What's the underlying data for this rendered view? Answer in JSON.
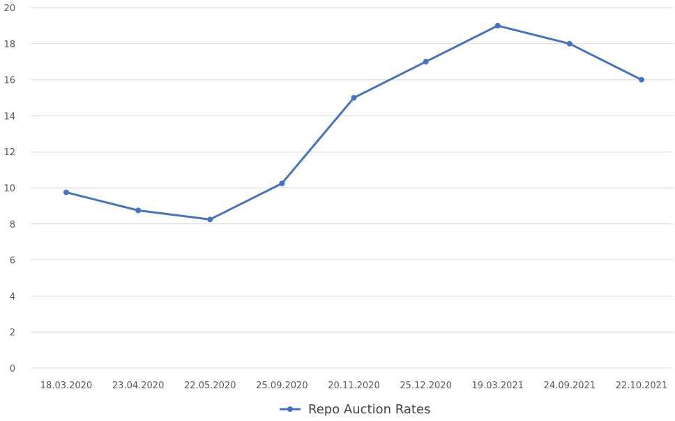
{
  "chart_data": {
    "type": "line",
    "title": "",
    "xlabel": "",
    "ylabel": "",
    "categories": [
      "18.03.2020",
      "23.04.2020",
      "22.05.2020",
      "25.09.2020",
      "20.11.2020",
      "25.12.2020",
      "19.03.2021",
      "24.09.2021",
      "22.10.2021"
    ],
    "series": [
      {
        "name": "Repo Auction Rates",
        "color": "#4472c4",
        "values": [
          9.75,
          8.75,
          8.25,
          10.25,
          15,
          17,
          19,
          18,
          16
        ]
      }
    ],
    "ylim": [
      0,
      20
    ],
    "yticks": [
      0,
      2,
      4,
      6,
      8,
      10,
      12,
      14,
      16,
      18,
      20
    ],
    "grid": true,
    "legend_position": "bottom"
  },
  "colors": {
    "line": "#4472c4",
    "grid": "#d9d9d9",
    "tick_text": "#595959",
    "legend_text": "#404040"
  }
}
